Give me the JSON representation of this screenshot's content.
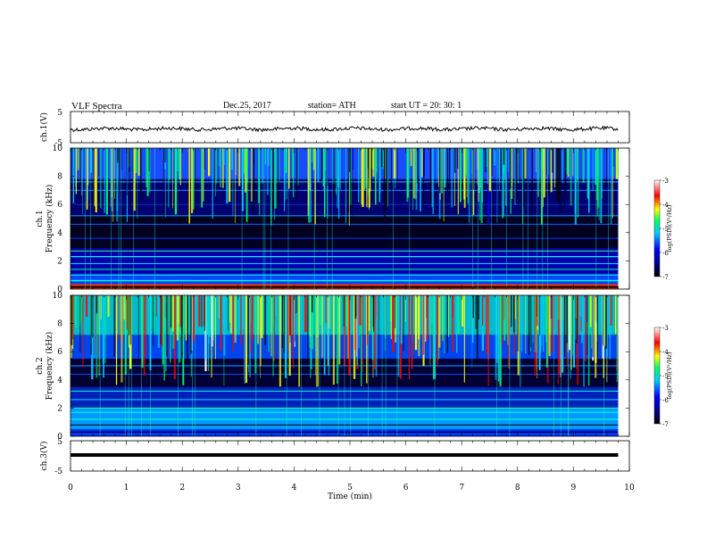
{
  "header": {
    "title": "VLF  Spectra",
    "date": "Dec.25, 2017",
    "station": "station= ATH",
    "start": "start  UT  =   20: 30: 1"
  },
  "chart_data": [
    {
      "type": "line",
      "panel": "ch1-waveform",
      "ylabel": "ch.1(V)",
      "ylim": [
        -5,
        5
      ],
      "yticks": [
        "5",
        "-5"
      ],
      "approx_level": 0,
      "color": "#000000"
    },
    {
      "type": "heatmap",
      "panel": "ch1-spectrogram",
      "ylabel": "ch.1\nFrequency  (kHz)",
      "ylim": [
        0,
        10
      ],
      "yticks": [
        "0",
        "2",
        "4",
        "6",
        "8",
        "10"
      ],
      "colorbar": {
        "label": "log(PSD)(V²/Hz)",
        "range": [
          -7,
          -3
        ],
        "ticks": [
          "-3",
          "-4",
          "-5",
          "-6",
          "-7"
        ]
      }
    },
    {
      "type": "heatmap",
      "panel": "ch2-spectrogram",
      "ylabel": "ch.2\nFrequency  (kHz)",
      "ylim": [
        0,
        10
      ],
      "yticks": [
        "0",
        "2",
        "4",
        "6",
        "8",
        "10"
      ],
      "colorbar": {
        "label": "log(PSD)(V²/Hz)",
        "range": [
          -7,
          -3
        ],
        "ticks": [
          "-3",
          "-4",
          "-5",
          "-6",
          "-7"
        ]
      }
    },
    {
      "type": "line",
      "panel": "ch3-waveform",
      "ylabel": "ch.3(V)",
      "ylim": [
        -5,
        5
      ],
      "yticks": [
        "5",
        "-5"
      ],
      "approx_level": 0,
      "color": "#000000"
    }
  ],
  "xaxis": {
    "label": "Time  (min)",
    "range": [
      0,
      10
    ],
    "ticks": [
      "0",
      "1",
      "2",
      "3",
      "4",
      "5",
      "6",
      "7",
      "8",
      "9",
      "10"
    ],
    "data_end": 9.8
  },
  "colormap": [
    "#000000",
    "#000066",
    "#0000ff",
    "#00ccff",
    "#00ff66",
    "#ffff00",
    "#ff0000",
    "#ffffff"
  ]
}
